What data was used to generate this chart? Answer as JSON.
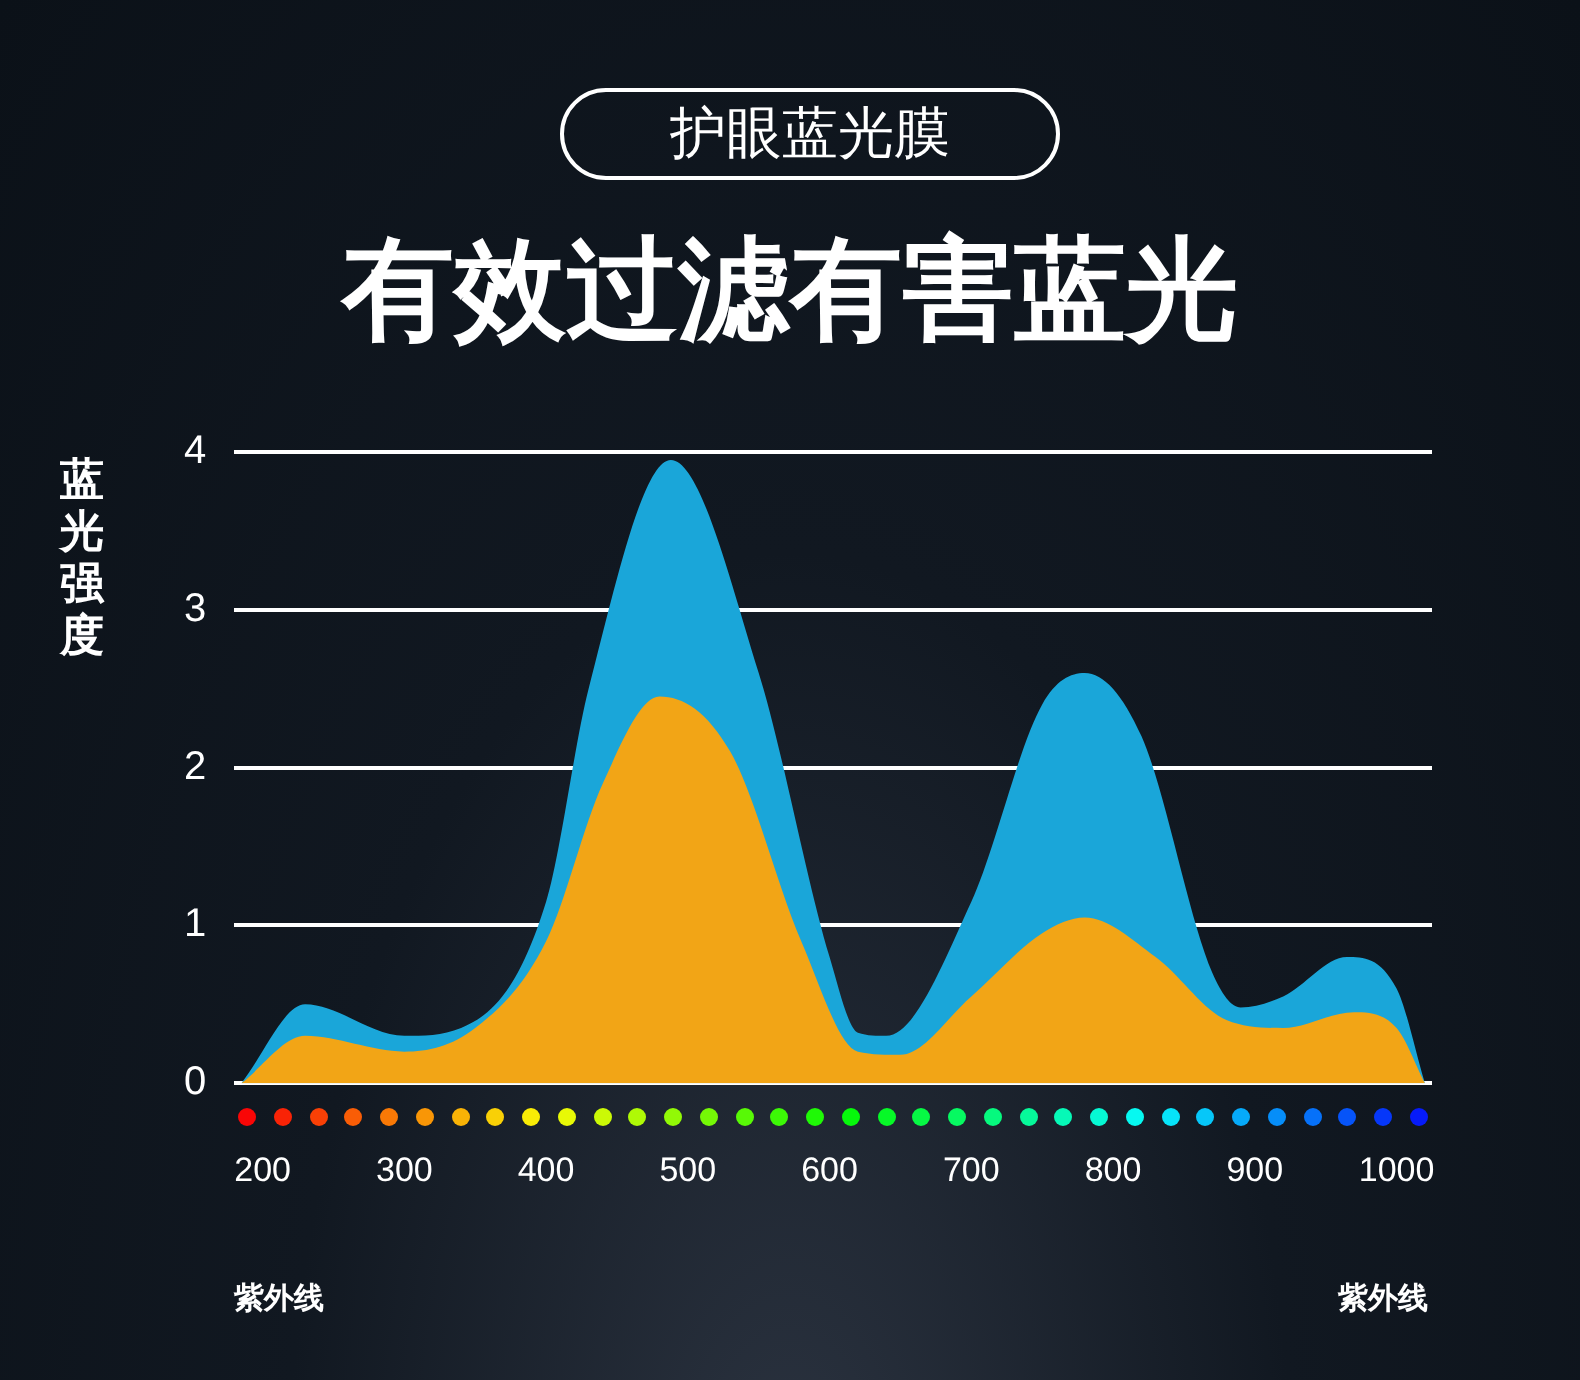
{
  "chart_data": {
    "type": "area",
    "title": "有效过滤有害蓝光",
    "subtitle": "护眼蓝光膜",
    "ylabel": "蓝光强度",
    "annotations": [
      "紫外线",
      "紫外线"
    ],
    "xlim": [
      180,
      1025
    ],
    "xticks": [
      200,
      300,
      400,
      500,
      600,
      700,
      800,
      900,
      1000
    ],
    "ylim": [
      0,
      4
    ],
    "yticks": [
      0,
      1,
      2,
      3,
      4
    ],
    "grid": "y",
    "legend": false,
    "series": [
      {
        "color": "#1aa6d9",
        "x": [
          185,
          230,
          300,
          340,
          400,
          430,
          488,
          550,
          600,
          620,
          640,
          700,
          750,
          780,
          820,
          870,
          890,
          920,
          965,
          1000,
          1020
        ],
        "values": [
          0,
          0.5,
          0.3,
          0.35,
          1.15,
          2.5,
          3.95,
          2.6,
          0.8,
          0.32,
          0.3,
          1.15,
          2.4,
          2.6,
          2.2,
          0.7,
          0.48,
          0.55,
          0.8,
          0.6,
          0
        ]
      },
      {
        "color": "#f2a516",
        "x": [
          185,
          230,
          300,
          350,
          400,
          440,
          480,
          530,
          580,
          620,
          650,
          700,
          750,
          780,
          830,
          880,
          920,
          970,
          1000,
          1020
        ],
        "values": [
          0,
          0.3,
          0.2,
          0.35,
          0.9,
          1.9,
          2.45,
          2.1,
          0.9,
          0.2,
          0.18,
          0.55,
          0.95,
          1.05,
          0.8,
          0.4,
          0.35,
          0.45,
          0.35,
          0
        ]
      }
    ]
  }
}
